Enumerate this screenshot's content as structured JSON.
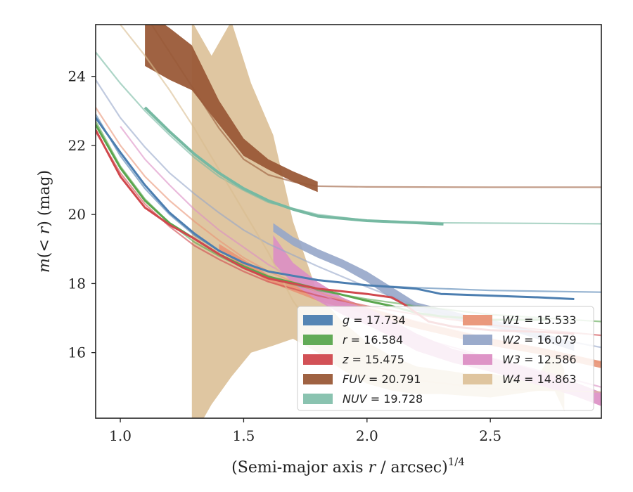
{
  "chart_data": {
    "type": "line",
    "xlabel": "(Semi-major axis r / arcsec)^1/4",
    "ylabel": "m(< r) (mag)",
    "xlim": [
      0.9,
      2.95
    ],
    "ylim": [
      25.5,
      14.1
    ],
    "y_inverted": true,
    "grid": false,
    "legend_position": "lower-right",
    "xticks": [
      {
        "value": 1.0,
        "label": "1.0"
      },
      {
        "value": 1.5,
        "label": "1.5"
      },
      {
        "value": 2.0,
        "label": "2.0"
      },
      {
        "value": 2.5,
        "label": "2.5"
      }
    ],
    "yticks": [
      {
        "value": 16,
        "label": "16"
      },
      {
        "value": 18,
        "label": "18"
      },
      {
        "value": 20,
        "label": "20"
      },
      {
        "value": 22,
        "label": "22"
      },
      {
        "value": 24,
        "label": "24"
      }
    ],
    "series": [
      {
        "name": "g",
        "total": "17.734",
        "legend": "g = 17.734",
        "color": "#4c7eb0",
        "model": [
          [
            0.9,
            22.9
          ],
          [
            1.0,
            21.7
          ],
          [
            1.1,
            20.75
          ],
          [
            1.2,
            20.0
          ],
          [
            1.3,
            19.4
          ],
          [
            1.4,
            18.95
          ],
          [
            1.5,
            18.6
          ],
          [
            1.6,
            18.35
          ],
          [
            1.8,
            18.1
          ],
          [
            2.0,
            17.95
          ],
          [
            2.2,
            17.88
          ],
          [
            2.5,
            17.8
          ],
          [
            2.95,
            17.75
          ]
        ],
        "data": [
          [
            0.9,
            22.8
          ],
          [
            1.0,
            21.8
          ],
          [
            1.1,
            20.85
          ],
          [
            1.2,
            20.05
          ],
          [
            1.3,
            19.45
          ],
          [
            1.4,
            18.95
          ],
          [
            1.5,
            18.6
          ],
          [
            1.6,
            18.35
          ],
          [
            1.8,
            18.1
          ],
          [
            2.0,
            17.95
          ],
          [
            2.1,
            17.9
          ],
          [
            2.2,
            17.85
          ],
          [
            2.3,
            17.7
          ],
          [
            2.5,
            17.65
          ],
          [
            2.7,
            17.6
          ],
          [
            2.84,
            17.55
          ]
        ]
      },
      {
        "name": "r",
        "total": "16.584",
        "legend": "r = 16.584",
        "color": "#5aa64e",
        "model": [
          [
            0.9,
            22.7
          ],
          [
            1.0,
            21.4
          ],
          [
            1.1,
            20.45
          ],
          [
            1.2,
            19.75
          ],
          [
            1.3,
            19.2
          ],
          [
            1.4,
            18.8
          ],
          [
            1.5,
            18.45
          ],
          [
            1.6,
            18.15
          ],
          [
            1.8,
            17.8
          ],
          [
            2.0,
            17.55
          ],
          [
            2.2,
            17.35
          ],
          [
            2.5,
            17.1
          ],
          [
            2.95,
            16.9
          ]
        ],
        "data": [
          [
            0.9,
            22.6
          ],
          [
            1.0,
            21.35
          ],
          [
            1.1,
            20.4
          ],
          [
            1.2,
            19.75
          ],
          [
            1.3,
            19.3
          ],
          [
            1.4,
            18.85
          ],
          [
            1.5,
            18.5
          ],
          [
            1.6,
            18.2
          ],
          [
            1.8,
            17.85
          ],
          [
            2.0,
            17.5
          ],
          [
            2.1,
            17.35
          ],
          [
            2.2,
            17.15
          ],
          [
            2.3,
            17.05
          ],
          [
            2.5,
            16.95
          ],
          [
            2.73,
            16.95
          ]
        ]
      },
      {
        "name": "z",
        "total": "15.475",
        "legend": "z = 15.475",
        "color": "#d0484d",
        "model": [
          [
            0.9,
            22.4
          ],
          [
            1.0,
            21.2
          ],
          [
            1.1,
            20.3
          ],
          [
            1.2,
            19.65
          ],
          [
            1.3,
            19.1
          ],
          [
            1.4,
            18.7
          ],
          [
            1.5,
            18.35
          ],
          [
            1.6,
            18.05
          ],
          [
            1.8,
            17.65
          ],
          [
            2.0,
            17.35
          ],
          [
            2.2,
            17.1
          ],
          [
            2.5,
            16.8
          ],
          [
            2.95,
            16.5
          ]
        ],
        "data": [
          [
            0.9,
            22.45
          ],
          [
            1.0,
            21.1
          ],
          [
            1.1,
            20.2
          ],
          [
            1.2,
            19.7
          ],
          [
            1.3,
            19.3
          ],
          [
            1.4,
            18.85
          ],
          [
            1.5,
            18.45
          ],
          [
            1.6,
            18.15
          ],
          [
            1.8,
            17.85
          ],
          [
            2.0,
            17.7
          ],
          [
            2.1,
            17.6
          ],
          [
            2.15,
            17.4
          ],
          [
            2.25,
            16.9
          ],
          [
            2.35,
            16.75
          ],
          [
            2.5,
            16.65
          ],
          [
            2.7,
            16.6
          ],
          [
            2.84,
            16.55
          ]
        ]
      },
      {
        "name": "FUV",
        "total": "20.791",
        "legend": "FUV = 20.791",
        "color": "#9a5a38",
        "model": [
          [
            1.1,
            25.8
          ],
          [
            1.2,
            24.7
          ],
          [
            1.3,
            23.6
          ],
          [
            1.4,
            22.5
          ],
          [
            1.5,
            21.6
          ],
          [
            1.6,
            21.15
          ],
          [
            1.7,
            20.95
          ],
          [
            1.8,
            20.82
          ],
          [
            2.0,
            20.8
          ],
          [
            2.5,
            20.79
          ],
          [
            2.95,
            20.79
          ]
        ],
        "band": [
          [
            1.1,
            24.3,
            25.9
          ],
          [
            1.2,
            23.9,
            25.4
          ],
          [
            1.29,
            23.6,
            24.9
          ],
          [
            1.4,
            22.6,
            23.3
          ],
          [
            1.5,
            21.7,
            22.2
          ],
          [
            1.6,
            21.3,
            21.6
          ],
          [
            1.7,
            20.95,
            21.25
          ],
          [
            1.8,
            20.65,
            20.95
          ]
        ]
      },
      {
        "name": "NUV",
        "total": "19.728",
        "legend": "NUV = 19.728",
        "color": "#76b9a2",
        "model": [
          [
            0.9,
            24.7
          ],
          [
            1.0,
            23.8
          ],
          [
            1.1,
            23.0
          ],
          [
            1.2,
            22.3
          ],
          [
            1.3,
            21.65
          ],
          [
            1.4,
            21.1
          ],
          [
            1.5,
            20.7
          ],
          [
            1.6,
            20.35
          ],
          [
            1.8,
            20.0
          ],
          [
            2.0,
            19.83
          ],
          [
            2.3,
            19.76
          ],
          [
            2.95,
            19.73
          ]
        ],
        "data": [
          [
            1.1,
            23.1
          ],
          [
            1.2,
            22.4
          ],
          [
            1.3,
            21.75
          ],
          [
            1.4,
            21.2
          ],
          [
            1.5,
            20.75
          ],
          [
            1.6,
            20.4
          ],
          [
            1.7,
            20.15
          ],
          [
            1.8,
            19.95
          ],
          [
            2.0,
            19.82
          ],
          [
            2.2,
            19.76
          ],
          [
            2.31,
            19.72
          ]
        ]
      },
      {
        "name": "W1",
        "total": "15.533",
        "legend": "W1 = 15.533",
        "color": "#e99476",
        "model": [
          [
            0.9,
            23.1
          ],
          [
            1.0,
            22.0
          ],
          [
            1.1,
            21.1
          ],
          [
            1.2,
            20.4
          ],
          [
            1.3,
            19.8
          ],
          [
            1.4,
            19.25
          ],
          [
            1.5,
            18.75
          ],
          [
            1.6,
            18.35
          ],
          [
            1.8,
            17.75
          ],
          [
            2.0,
            17.3
          ],
          [
            2.2,
            16.9
          ],
          [
            2.5,
            16.4
          ],
          [
            2.95,
            15.7
          ]
        ],
        "band": [
          [
            1.4,
            18.95,
            19.15
          ],
          [
            1.5,
            18.5,
            18.7
          ],
          [
            1.6,
            18.05,
            18.25
          ],
          [
            1.8,
            17.5,
            17.7
          ],
          [
            2.0,
            17.1,
            17.3
          ],
          [
            2.2,
            16.7,
            16.9
          ],
          [
            2.5,
            16.2,
            16.4
          ],
          [
            2.7,
            15.95,
            16.15
          ],
          [
            2.95,
            15.55,
            15.75
          ]
        ]
      },
      {
        "name": "W2",
        "total": "16.079",
        "legend": "W2 = 16.079",
        "color": "#96a6c9",
        "model": [
          [
            0.9,
            23.9
          ],
          [
            1.0,
            22.8
          ],
          [
            1.1,
            21.95
          ],
          [
            1.2,
            21.2
          ],
          [
            1.3,
            20.6
          ],
          [
            1.4,
            20.05
          ],
          [
            1.5,
            19.55
          ],
          [
            1.6,
            19.15
          ],
          [
            1.8,
            18.5
          ],
          [
            2.0,
            17.9
          ],
          [
            2.2,
            17.35
          ],
          [
            2.5,
            16.75
          ],
          [
            2.95,
            16.15
          ]
        ],
        "band": [
          [
            1.62,
            19.5,
            19.75
          ],
          [
            1.7,
            19.1,
            19.35
          ],
          [
            1.8,
            18.75,
            19.0
          ],
          [
            1.9,
            18.45,
            18.7
          ],
          [
            2.0,
            18.05,
            18.35
          ],
          [
            2.1,
            17.55,
            17.9
          ],
          [
            2.2,
            17.2,
            17.45
          ],
          [
            2.4,
            16.9,
            17.1
          ],
          [
            2.6,
            16.6,
            16.8
          ],
          [
            2.84,
            16.05,
            16.3
          ]
        ]
      },
      {
        "name": "W3",
        "total": "12.586",
        "legend": "W3 = 12.586",
        "color": "#dc8ec4",
        "model": [
          [
            1.0,
            22.55
          ],
          [
            1.1,
            21.6
          ],
          [
            1.2,
            20.85
          ],
          [
            1.3,
            20.15
          ],
          [
            1.4,
            19.55
          ],
          [
            1.5,
            19.05
          ],
          [
            1.6,
            18.55
          ],
          [
            1.8,
            17.75
          ],
          [
            2.0,
            17.05
          ],
          [
            2.2,
            16.45
          ],
          [
            2.5,
            15.85
          ],
          [
            2.95,
            15.0
          ]
        ],
        "band": [
          [
            1.62,
            18.6,
            19.4
          ],
          [
            1.7,
            18.0,
            18.6
          ],
          [
            1.8,
            17.5,
            18.05
          ],
          [
            1.9,
            17.1,
            17.6
          ],
          [
            2.0,
            16.8,
            17.3
          ],
          [
            2.1,
            16.45,
            16.95
          ],
          [
            2.2,
            16.05,
            16.55
          ],
          [
            2.35,
            15.7,
            16.1
          ],
          [
            2.5,
            15.45,
            15.85
          ],
          [
            2.7,
            15.05,
            15.45
          ],
          [
            2.84,
            14.75,
            15.15
          ],
          [
            2.95,
            14.45,
            14.85
          ]
        ]
      },
      {
        "name": "W4",
        "total": "14.863",
        "legend": "W4 = 14.863",
        "color": "#d9bc90",
        "model": [
          [
            1.0,
            25.5
          ],
          [
            1.1,
            24.6
          ],
          [
            1.2,
            23.6
          ],
          [
            1.3,
            22.5
          ],
          [
            1.4,
            21.3
          ],
          [
            1.5,
            20.1
          ],
          [
            1.6,
            18.9
          ],
          [
            1.7,
            17.5
          ],
          [
            1.8,
            16.5
          ],
          [
            2.0,
            15.7
          ],
          [
            2.2,
            15.2
          ],
          [
            2.5,
            14.95
          ],
          [
            2.95,
            14.86
          ]
        ],
        "band": [
          [
            1.29,
            13.5,
            25.6
          ],
          [
            1.37,
            14.5,
            24.6
          ],
          [
            1.45,
            15.3,
            25.6
          ],
          [
            1.53,
            16.0,
            23.8
          ],
          [
            1.62,
            16.2,
            22.3
          ],
          [
            1.7,
            16.4,
            19.8
          ],
          [
            1.8,
            16.0,
            17.7
          ],
          [
            1.9,
            15.5,
            16.9
          ],
          [
            2.0,
            15.1,
            16.3
          ],
          [
            2.1,
            14.9,
            15.9
          ],
          [
            2.2,
            14.8,
            15.6
          ],
          [
            2.3,
            14.8,
            15.5
          ],
          [
            2.4,
            14.75,
            15.4
          ],
          [
            2.5,
            14.7,
            15.4
          ],
          [
            2.6,
            14.8,
            15.25
          ],
          [
            2.7,
            14.9,
            15.4
          ],
          [
            2.76,
            14.9,
            16.1
          ],
          [
            2.8,
            14.3,
            15.5
          ]
        ]
      }
    ],
    "legend_order": [
      "g",
      "r",
      "z",
      "FUV",
      "NUV",
      "W1",
      "W2",
      "W3",
      "W4"
    ]
  }
}
